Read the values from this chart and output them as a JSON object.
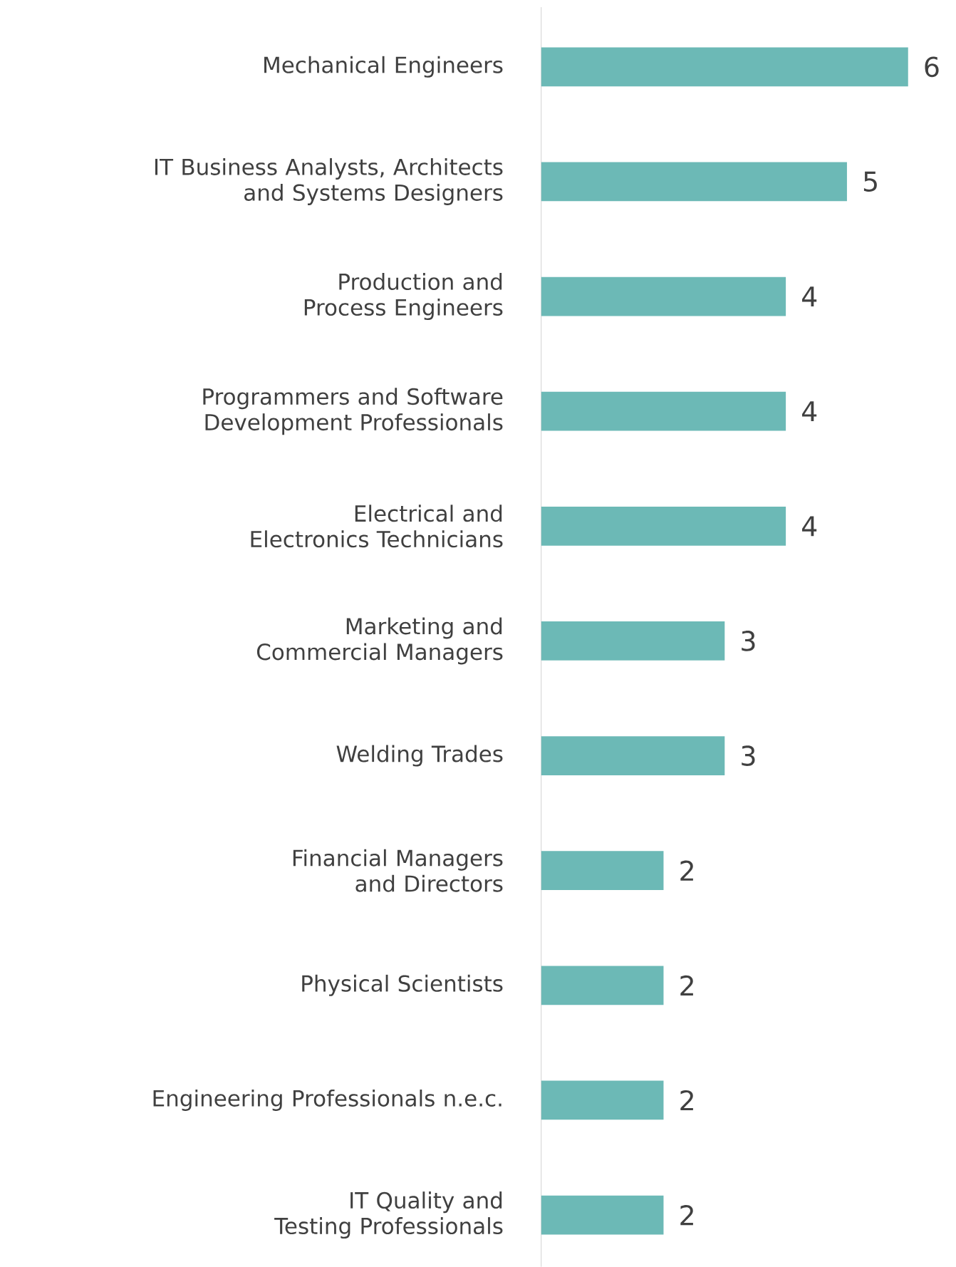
{
  "chart_data": {
    "type": "bar",
    "orientation": "horizontal",
    "categories": [
      "Mechanical Engineers",
      "IT Business Analysts, Architects and Systems Designers",
      "Production and Process Engineers",
      "Programmers and Software Development Professionals",
      "Electrical and Electronics Technicians",
      "Marketing and Commercial Managers",
      "Welding Trades",
      "Financial Managers and Directors",
      "Physical Scientists",
      "Engineering Professionals n.e.c.",
      "IT Quality and Testing Professionals"
    ],
    "values": [
      6,
      5,
      4,
      4,
      4,
      3,
      3,
      2,
      2,
      2,
      2
    ],
    "color": "#6cb9b6",
    "data_labels": true
  }
}
